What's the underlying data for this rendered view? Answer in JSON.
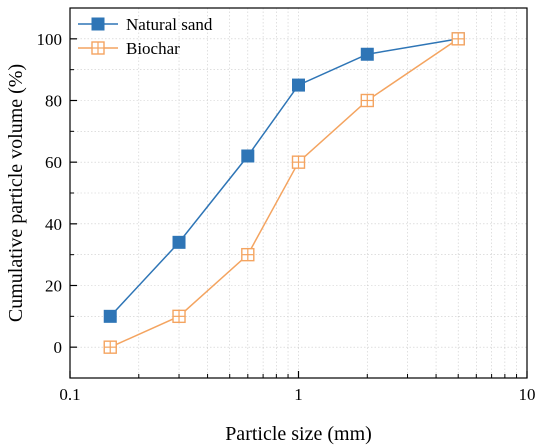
{
  "chart_data": {
    "type": "line",
    "xscale": "log",
    "xlim": [
      0.1,
      10
    ],
    "ylim": [
      -10,
      110
    ],
    "xlabel": "Particle size (mm)",
    "ylabel": "Cumulative particle volume (%)",
    "xticks": [
      0.1,
      1,
      10
    ],
    "xtick_labels": [
      "0.1",
      "1",
      "10"
    ],
    "yticks": [
      0,
      20,
      40,
      60,
      80,
      100
    ],
    "ytick_labels": [
      "0",
      "20",
      "40",
      "60",
      "80",
      "100"
    ],
    "grid": true,
    "legend_position": "top-left",
    "series": [
      {
        "name": "Natural sand",
        "color": "#2E75B6",
        "marker": "filled-square",
        "x": [
          0.15,
          0.3,
          0.6,
          1,
          2,
          5
        ],
        "y": [
          10,
          34,
          62,
          85,
          95,
          100
        ]
      },
      {
        "name": "Biochar",
        "color": "#F4A460",
        "marker": "crossed-square",
        "x": [
          0.15,
          0.3,
          0.6,
          1,
          2,
          5
        ],
        "y": [
          0,
          10,
          30,
          60,
          80,
          100
        ]
      }
    ]
  }
}
